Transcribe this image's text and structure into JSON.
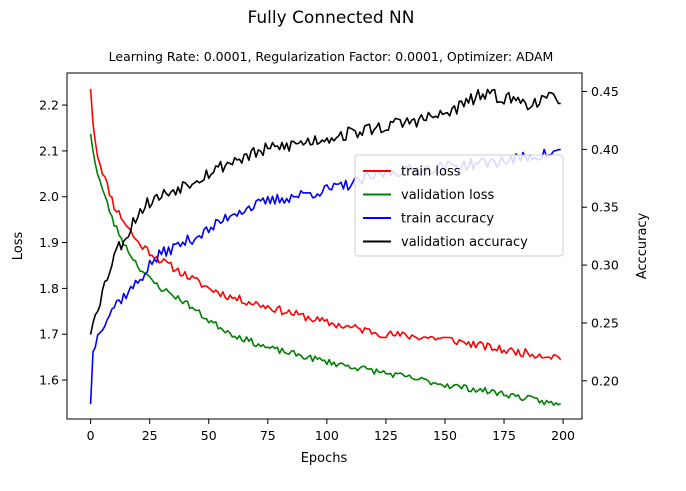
{
  "chart_data": {
    "type": "line",
    "title": "Fully Connected NN",
    "subtitle": "Learning Rate: 0.0001, Regularization Factor: 0.0001, Optimizer: ADAM",
    "xlabel": "Epochs",
    "ylabel_left": "Loss",
    "ylabel_right": "Acccuracy",
    "xlim": [
      -10,
      208
    ],
    "ylim_left": [
      1.515,
      2.27
    ],
    "ylim_right": [
      0.167,
      0.466
    ],
    "xticks": [
      0,
      25,
      50,
      75,
      100,
      125,
      150,
      175,
      200
    ],
    "xtick_labels": [
      "0",
      "25",
      "50",
      "75",
      "100",
      "125",
      "150",
      "175",
      "200"
    ],
    "yticks_left": [
      1.6,
      1.7,
      1.8,
      1.9,
      2.0,
      2.1,
      2.2
    ],
    "ytick_labels_left": [
      "1.6",
      "1.7",
      "1.8",
      "1.9",
      "2.0",
      "2.1",
      "2.2"
    ],
    "yticks_right": [
      0.2,
      0.25,
      0.3,
      0.35,
      0.4,
      0.45
    ],
    "ytick_labels_right": [
      "0.20",
      "0.25",
      "0.30",
      "0.35",
      "0.40",
      "0.45"
    ],
    "legend_location": "center-right",
    "series": [
      {
        "name": "train loss",
        "axis": "left",
        "color": "#ff0000",
        "anchors": [
          [
            0,
            2.235
          ],
          [
            1,
            2.16
          ],
          [
            3,
            2.09
          ],
          [
            6,
            2.04
          ],
          [
            10,
            1.98
          ],
          [
            15,
            1.94
          ],
          [
            20,
            1.9
          ],
          [
            25,
            1.88
          ],
          [
            30,
            1.86
          ],
          [
            40,
            1.83
          ],
          [
            50,
            1.8
          ],
          [
            60,
            1.78
          ],
          [
            75,
            1.76
          ],
          [
            100,
            1.725
          ],
          [
            125,
            1.7
          ],
          [
            150,
            1.69
          ],
          [
            175,
            1.665
          ],
          [
            199,
            1.65
          ]
        ],
        "noise": 0.009,
        "seed": 11
      },
      {
        "name": "validation loss",
        "axis": "left",
        "color": "#008000",
        "anchors": [
          [
            0,
            2.137
          ],
          [
            1,
            2.1
          ],
          [
            3,
            2.05
          ],
          [
            6,
            2.0
          ],
          [
            10,
            1.94
          ],
          [
            15,
            1.89
          ],
          [
            20,
            1.85
          ],
          [
            25,
            1.82
          ],
          [
            30,
            1.8
          ],
          [
            40,
            1.77
          ],
          [
            50,
            1.73
          ],
          [
            60,
            1.7
          ],
          [
            75,
            1.67
          ],
          [
            100,
            1.64
          ],
          [
            125,
            1.615
          ],
          [
            150,
            1.59
          ],
          [
            175,
            1.57
          ],
          [
            199,
            1.545
          ]
        ],
        "noise": 0.007,
        "seed": 23
      },
      {
        "name": "train accuracy",
        "axis": "right",
        "color": "#0000ff",
        "anchors": [
          [
            0,
            0.18
          ],
          [
            1,
            0.225
          ],
          [
            4,
            0.245
          ],
          [
            10,
            0.265
          ],
          [
            15,
            0.275
          ],
          [
            20,
            0.285
          ],
          [
            25,
            0.3
          ],
          [
            30,
            0.31
          ],
          [
            40,
            0.32
          ],
          [
            50,
            0.33
          ],
          [
            60,
            0.345
          ],
          [
            75,
            0.355
          ],
          [
            100,
            0.365
          ],
          [
            110,
            0.37
          ],
          [
            125,
            0.38
          ],
          [
            150,
            0.385
          ],
          [
            175,
            0.39
          ],
          [
            199,
            0.398
          ]
        ],
        "noise": 0.005,
        "seed": 37
      },
      {
        "name": "validation accuracy",
        "axis": "right",
        "color": "#000000",
        "anchors": [
          [
            0,
            0.24
          ],
          [
            2,
            0.26
          ],
          [
            4,
            0.27
          ],
          [
            7,
            0.29
          ],
          [
            10,
            0.31
          ],
          [
            15,
            0.325
          ],
          [
            20,
            0.345
          ],
          [
            25,
            0.355
          ],
          [
            30,
            0.36
          ],
          [
            40,
            0.37
          ],
          [
            50,
            0.38
          ],
          [
            60,
            0.39
          ],
          [
            75,
            0.4
          ],
          [
            100,
            0.41
          ],
          [
            125,
            0.42
          ],
          [
            150,
            0.43
          ],
          [
            165,
            0.447
          ],
          [
            175,
            0.445
          ],
          [
            185,
            0.44
          ],
          [
            199,
            0.445
          ]
        ],
        "noise": 0.006,
        "seed": 53
      }
    ]
  }
}
